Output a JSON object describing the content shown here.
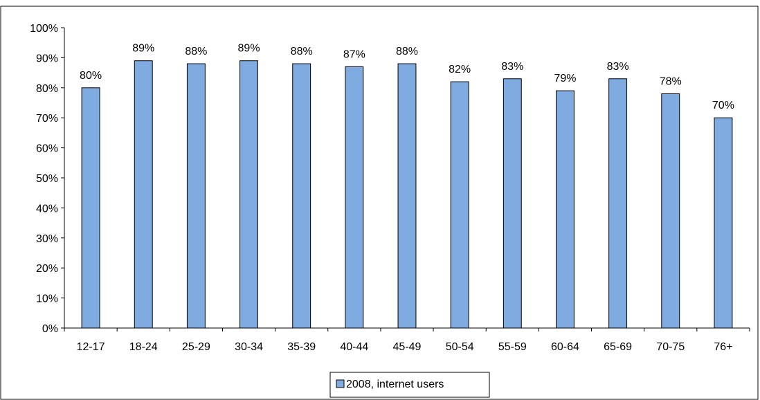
{
  "colors": {
    "bar_fill": "#7fabe0",
    "bar_stroke": "#000000",
    "plot_background": "#ffffff",
    "frame": "#000000"
  },
  "chart_data": {
    "type": "bar",
    "title": "",
    "xlabel": "",
    "ylabel": "",
    "ylim": [
      0,
      100
    ],
    "y_ticks": [
      "0%",
      "10%",
      "20%",
      "30%",
      "40%",
      "50%",
      "60%",
      "70%",
      "80%",
      "90%",
      "100%"
    ],
    "y_tick_values": [
      0,
      10,
      20,
      30,
      40,
      50,
      60,
      70,
      80,
      90,
      100
    ],
    "grid": false,
    "legend_position": "bottom",
    "categories": [
      "12-17",
      "18-24",
      "25-29",
      "30-34",
      "35-39",
      "40-44",
      "45-49",
      "50-54",
      "55-59",
      "60-64",
      "65-69",
      "70-75",
      "76+"
    ],
    "series": [
      {
        "name": "2008, internet users",
        "values": [
          80,
          89,
          88,
          89,
          88,
          87,
          88,
          82,
          83,
          79,
          83,
          78,
          70
        ],
        "labels": [
          "80%",
          "89%",
          "88%",
          "89%",
          "88%",
          "87%",
          "88%",
          "82%",
          "83%",
          "79%",
          "83%",
          "78%",
          "70%"
        ]
      }
    ]
  }
}
